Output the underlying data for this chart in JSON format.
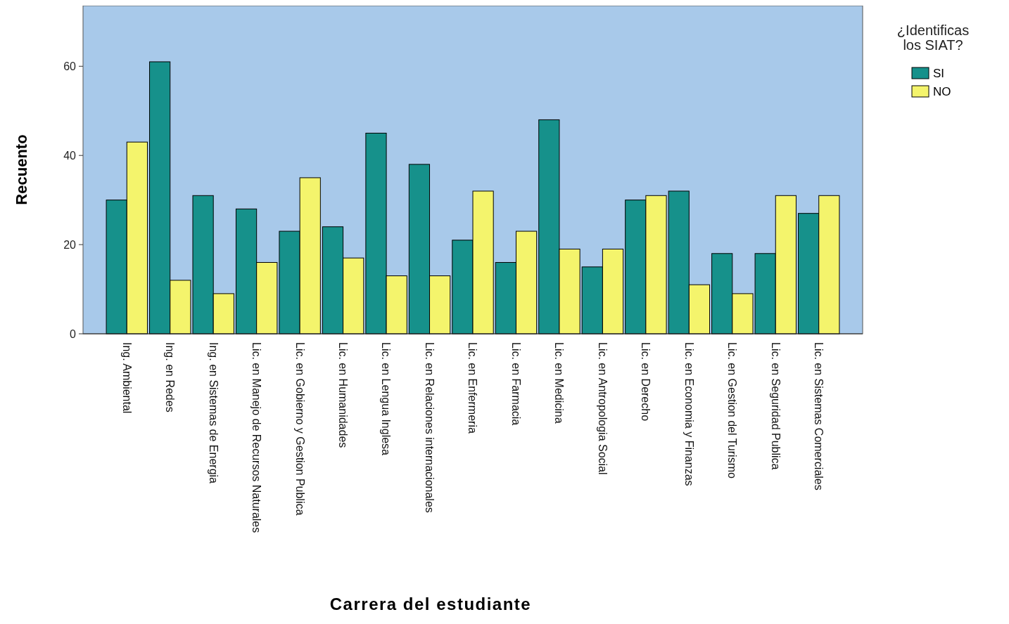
{
  "chart_data": {
    "type": "bar",
    "xlabel": "Carrera del estudiante",
    "ylabel": "Recuento",
    "legend_title": "¿Identificas los SIAT?",
    "legend": "top right",
    "grid": false,
    "categories": [
      "Ing. Ambiental",
      "Ing. en Redes",
      "Ing. en Sistemas de Energia",
      "Lic. en Manejo de Recursos Naturales",
      "Lic. en Gobierno y Gestion Publica",
      "Lic. en Humanidades",
      "Lic. en Lengua Inglesa",
      "Lic. en Relaciones internacionales",
      "Lic. en Enfermeria",
      "Lic. en Farmacia",
      "Lic. en Medicina",
      "Lic. en Antropologia Social",
      "Lic. en Derecho",
      "Lic. en Economia y Finanzas",
      "Lic. en Gestion del Turismo",
      "Lic. en Seguridad Publica",
      "Lic. en Sistemas Comerciales"
    ],
    "series": [
      {
        "name": "SI",
        "color": "#16918b",
        "values": [
          30,
          61,
          31,
          28,
          23,
          24,
          45,
          38,
          21,
          16,
          48,
          15,
          30,
          32,
          18,
          18,
          27
        ]
      },
      {
        "name": "NO",
        "color": "#f4f46c",
        "values": [
          43,
          12,
          9,
          16,
          35,
          17,
          13,
          13,
          32,
          23,
          19,
          19,
          31,
          11,
          9,
          31,
          31
        ]
      }
    ],
    "ylim": [
      0,
      73.6
    ],
    "yticks": [
      0,
      20,
      40,
      60
    ]
  }
}
